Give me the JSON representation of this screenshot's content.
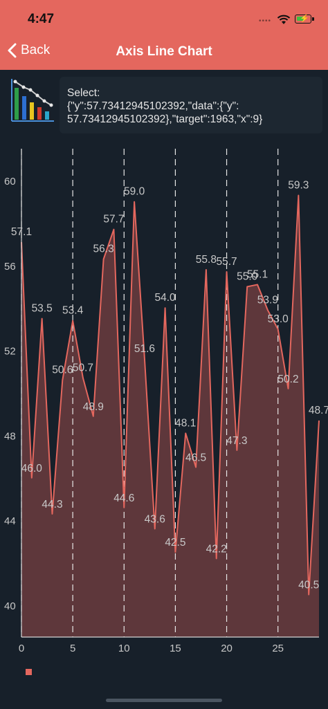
{
  "status_bar": {
    "time": "4:47",
    "dots": "••••"
  },
  "nav": {
    "back_label": "Back",
    "title": "Axis Line Chart"
  },
  "selection": {
    "text": "Select:\n{\"y\":57.73412945102392,\"data\":{\"y\":\n57.73412945102392},\"target\":1963,\"x\":9}"
  },
  "colors": {
    "accent": "#e4675e",
    "background": "#17202a",
    "area_fill": "#5e373b",
    "axis": "#d6d6d6"
  },
  "chart_data": {
    "type": "area",
    "x": [
      0,
      1,
      2,
      3,
      4,
      5,
      6,
      7,
      8,
      9,
      10,
      11,
      12,
      13,
      14,
      15,
      16,
      17,
      18,
      19,
      20,
      21,
      22,
      23,
      24,
      25,
      26,
      27,
      28,
      29
    ],
    "series": [
      {
        "values": [
          57.1,
          46.0,
          53.5,
          44.3,
          50.6,
          53.4,
          50.7,
          48.9,
          56.3,
          57.7,
          44.6,
          59.0,
          51.6,
          43.6,
          54.0,
          42.5,
          48.1,
          46.5,
          55.8,
          42.2,
          55.7,
          47.3,
          55.0,
          55.1,
          53.9,
          53.0,
          50.2,
          59.3,
          40.5,
          48.7
        ]
      }
    ],
    "data_labels": [
      "57.1",
      "46.0",
      "53.5",
      "44.3",
      "50.6",
      "53.4",
      "50.7",
      "48.9",
      "56.3",
      "57.7",
      "44.6",
      "59.0",
      "51.6",
      "43.6",
      "54.0",
      "42.5",
      "48.1",
      "46.5",
      "55.8",
      "42.2",
      "55.7",
      "47.3",
      "55.0",
      "55.1",
      "53.9",
      "53.0",
      "50.2",
      "59.3",
      "40.5",
      "48.7"
    ],
    "x_ticks": [
      "0",
      "5",
      "10",
      "15",
      "20",
      "25"
    ],
    "x_tick_values": [
      0,
      5,
      10,
      15,
      20,
      25
    ],
    "y_ticks": [
      "40",
      "44",
      "48",
      "52",
      "56",
      "60"
    ],
    "y_tick_values": [
      40,
      44,
      48,
      52,
      56,
      60
    ],
    "xlim": [
      0,
      29
    ],
    "ylim": [
      38.5,
      61.5
    ],
    "grid": "vertical-dashed",
    "legend": "bottom-left",
    "title": "",
    "xlabel": "",
    "ylabel": ""
  }
}
